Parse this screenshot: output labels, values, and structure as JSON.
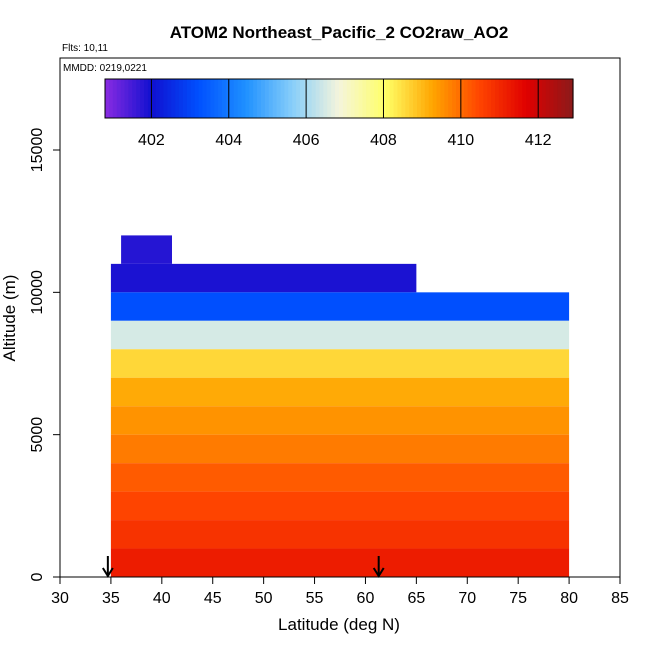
{
  "chart_data": {
    "type": "heatmap",
    "title": "ATOM2 Northeast_Pacific_2 CO2raw_AO2",
    "annotations": [
      "Flts: 10,11",
      "MMDD: 0219,0221"
    ],
    "xlabel": "Latitude (deg N)",
    "ylabel": "Altitude (m)",
    "xlim": [
      30,
      85
    ],
    "ylim": [
      0,
      18000
    ],
    "x_ticks": [
      "30",
      "35",
      "40",
      "45",
      "50",
      "55",
      "60",
      "65",
      "70",
      "75",
      "80",
      "85"
    ],
    "y_ticks": [
      "0",
      "5000",
      "10000",
      "15000"
    ],
    "colorbar": {
      "range": [
        400.8,
        412.9
      ],
      "ticks": [
        "402",
        "404",
        "406",
        "408",
        "410",
        "412"
      ],
      "colors": [
        "#8a2be2",
        "#1010d0",
        "#0050ff",
        "#1e90ff",
        "#87cefa",
        "#f5f5dc",
        "#ffff66",
        "#ffa500",
        "#ff4500",
        "#e00000",
        "#8b1a1a"
      ]
    },
    "altitude_bands": [
      {
        "y": [
          11000,
          12000
        ],
        "x": [
          36.0,
          41.0
        ],
        "value": 401.8
      },
      {
        "y": [
          10000,
          11000
        ],
        "x": [
          35.0,
          65.0
        ],
        "value": 401.9
      },
      {
        "y": [
          9000,
          10000
        ],
        "x": [
          35.0,
          80.0
        ],
        "value": 403.2
      },
      {
        "y": [
          8000,
          9000
        ],
        "x": [
          35.0,
          80.0
        ],
        "value": 406.5
      },
      {
        "y": [
          7000,
          8000
        ],
        "x": [
          35.0,
          80.0
        ],
        "value": 408.6
      },
      {
        "y": [
          6000,
          7000
        ],
        "x": [
          35.0,
          80.0
        ],
        "value": 409.2
      },
      {
        "y": [
          5000,
          6000
        ],
        "x": [
          35.0,
          80.0
        ],
        "value": 409.5
      },
      {
        "y": [
          4000,
          5000
        ],
        "x": [
          35.0,
          80.0
        ],
        "value": 409.8
      },
      {
        "y": [
          3000,
          4000
        ],
        "x": [
          35.0,
          80.0
        ],
        "value": 410.2
      },
      {
        "y": [
          2000,
          3000
        ],
        "x": [
          35.0,
          80.0
        ],
        "value": 410.5
      },
      {
        "y": [
          1000,
          2000
        ],
        "x": [
          35.0,
          80.0
        ],
        "value": 410.8
      },
      {
        "y": [
          0,
          1000
        ],
        "x": [
          35.0,
          80.0
        ],
        "value": 411.2
      }
    ],
    "arrows_at_latitude": [
      34.7,
      61.3
    ]
  }
}
